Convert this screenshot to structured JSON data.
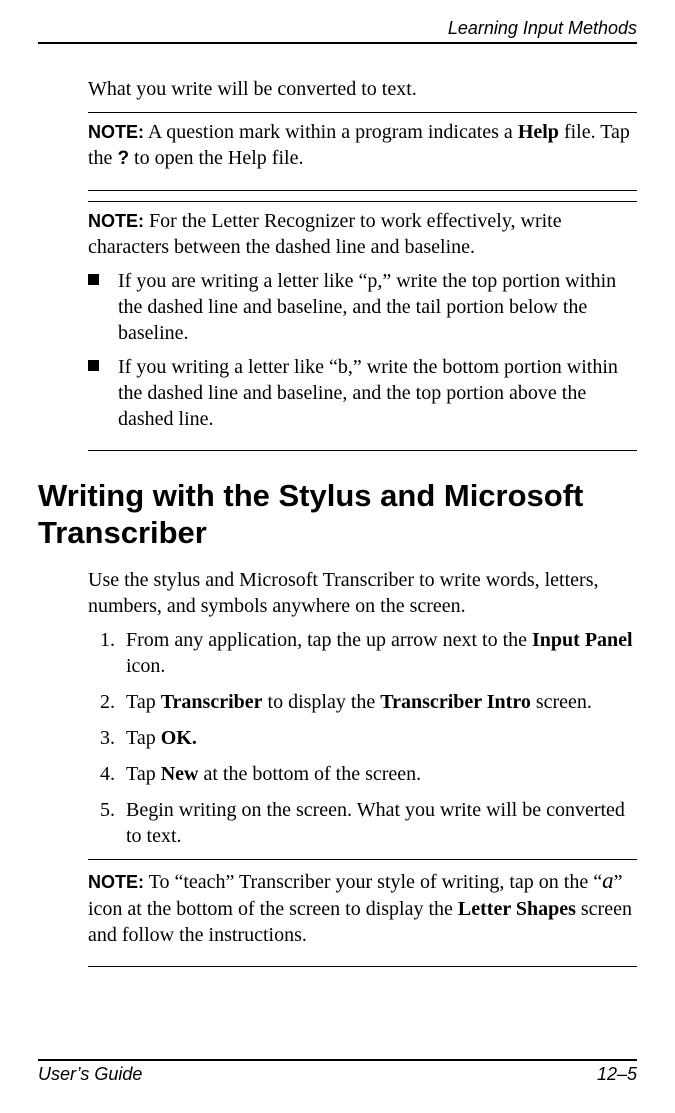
{
  "header": {
    "running_title": "Learning Input Methods"
  },
  "body": {
    "intro_para": "What you write will be converted to text.",
    "note1": {
      "label": "NOTE:",
      "text_before_help": " A question mark within a program indicates a ",
      "help_word": "Help",
      "text_after_help": " file. Tap the ",
      "question_mark": "?",
      "text_after_q": " to open the Help file."
    },
    "note2": {
      "label": "NOTE:",
      "text": " For the Letter Recognizer to work effectively, write characters between the dashed line and baseline.",
      "bullets": [
        "If you are writing a letter like “p,” write the top portion within the dashed line and baseline, and the tail portion below the baseline.",
        "If you writing a letter like “b,” write the bottom portion within the dashed line and baseline, and the top portion above the dashed line."
      ]
    },
    "heading": "Writing with the Stylus and Microsoft Transcriber",
    "heading_para": "Use the stylus and Microsoft Transcriber to write words, letters, numbers, and symbols anywhere on the screen.",
    "steps": [
      {
        "num": "1.",
        "pre": "From any application, tap the up arrow next to the ",
        "bold": "Input Panel",
        "post": " icon."
      },
      {
        "num": "2.",
        "pre": "Tap ",
        "bold": "Transcriber",
        "mid": " to display the ",
        "bold2": "Transcriber Intro",
        "post": " screen."
      },
      {
        "num": "3.",
        "pre": "Tap ",
        "bold": "OK.",
        "post": ""
      },
      {
        "num": "4.",
        "pre": "Tap ",
        "bold": "New",
        "post": " at the bottom of the screen."
      },
      {
        "num": "5.",
        "pre": "Begin writing on the screen. What you write will be converted to text.",
        "bold": "",
        "post": ""
      }
    ],
    "note3": {
      "label": "NOTE:",
      "pre": " To “teach” Transcriber your style of writing, tap on the “",
      "a_italic": "a",
      "mid": "” icon at the bottom of the screen to display the ",
      "bold": "Letter Shapes",
      "post": " screen and follow the instructions."
    }
  },
  "footer": {
    "left": "User’s Guide",
    "right": "12–5"
  }
}
